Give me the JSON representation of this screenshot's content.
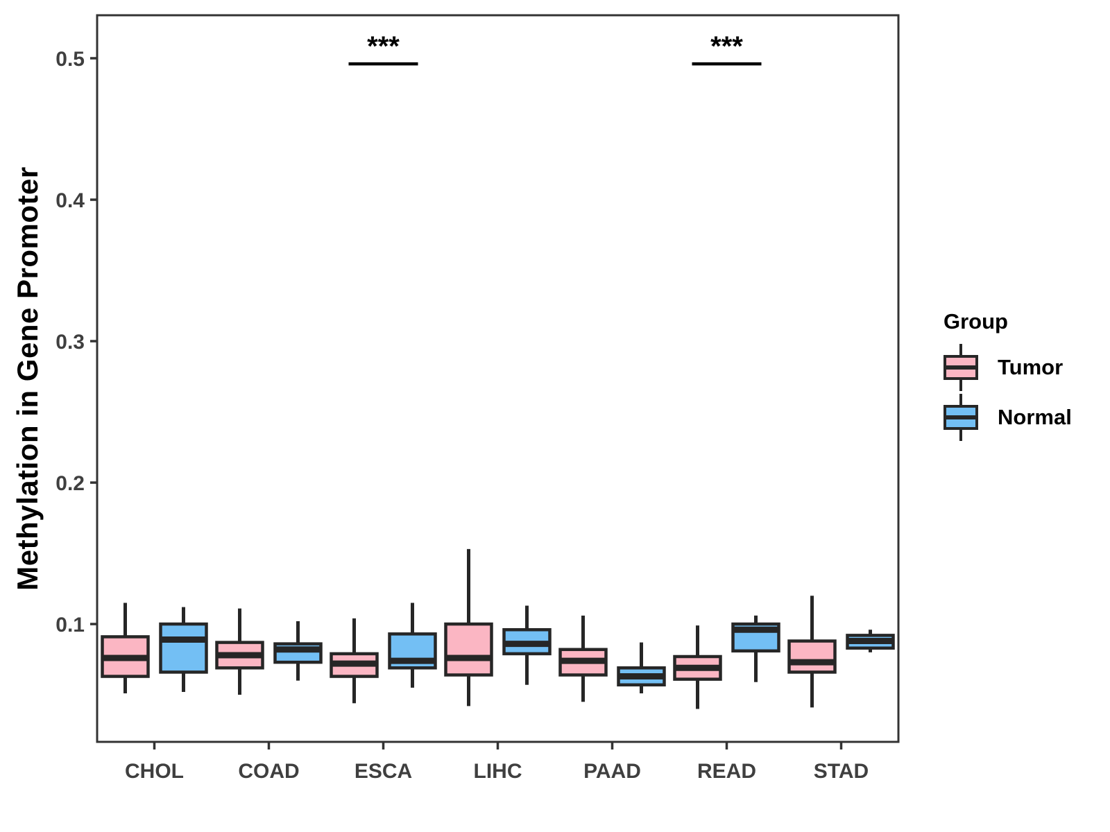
{
  "chart_data": {
    "type": "boxplot",
    "title": "",
    "xlabel": "",
    "ylabel": "Methylation in Gene Promoter",
    "categories": [
      "CHOL",
      "COAD",
      "ESCA",
      "LIHC",
      "PAAD",
      "READ",
      "STAD"
    ],
    "yticks": [
      {
        "value": 0.1,
        "label": "0.1"
      },
      {
        "value": 0.2,
        "label": "0.2"
      },
      {
        "value": 0.3,
        "label": "0.3"
      },
      {
        "value": 0.4,
        "label": "0.4"
      },
      {
        "value": 0.5,
        "label": "0.5"
      }
    ],
    "ylim": [
      0.0167,
      0.5304
    ],
    "grid": false,
    "series": [
      {
        "name": "Tumor",
        "color": "#FBB6C3",
        "boxes": [
          {
            "category": "CHOL",
            "min": 0.051,
            "q1": 0.063,
            "median": 0.076,
            "q3": 0.091,
            "max": 0.115
          },
          {
            "category": "COAD",
            "min": 0.05,
            "q1": 0.069,
            "median": 0.078,
            "q3": 0.087,
            "max": 0.111
          },
          {
            "category": "ESCA",
            "min": 0.044,
            "q1": 0.063,
            "median": 0.072,
            "q3": 0.079,
            "max": 0.104
          },
          {
            "category": "LIHC",
            "min": 0.042,
            "q1": 0.064,
            "median": 0.076,
            "q3": 0.1,
            "max": 0.153
          },
          {
            "category": "PAAD",
            "min": 0.045,
            "q1": 0.064,
            "median": 0.074,
            "q3": 0.082,
            "max": 0.106
          },
          {
            "category": "READ",
            "min": 0.04,
            "q1": 0.061,
            "median": 0.069,
            "q3": 0.077,
            "max": 0.099
          },
          {
            "category": "STAD",
            "min": 0.041,
            "q1": 0.066,
            "median": 0.073,
            "q3": 0.088,
            "max": 0.12
          }
        ]
      },
      {
        "name": "Normal",
        "color": "#73BFF4",
        "boxes": [
          {
            "category": "CHOL",
            "min": 0.052,
            "q1": 0.066,
            "median": 0.089,
            "q3": 0.1,
            "max": 0.112
          },
          {
            "category": "COAD",
            "min": 0.06,
            "q1": 0.073,
            "median": 0.082,
            "q3": 0.086,
            "max": 0.102
          },
          {
            "category": "ESCA",
            "min": 0.055,
            "q1": 0.069,
            "median": 0.074,
            "q3": 0.093,
            "max": 0.115
          },
          {
            "category": "LIHC",
            "min": 0.057,
            "q1": 0.079,
            "median": 0.086,
            "q3": 0.096,
            "max": 0.113
          },
          {
            "category": "PAAD",
            "min": 0.051,
            "q1": 0.057,
            "median": 0.063,
            "q3": 0.069,
            "max": 0.087
          },
          {
            "category": "READ",
            "min": 0.059,
            "q1": 0.081,
            "median": 0.096,
            "q3": 0.1,
            "max": 0.106
          },
          {
            "category": "STAD",
            "min": 0.08,
            "q1": 0.083,
            "median": 0.088,
            "q3": 0.092,
            "max": 0.096
          }
        ]
      }
    ],
    "annotations": [
      {
        "category": "ESCA",
        "label": "***",
        "bar_y": 0.496
      },
      {
        "category": "READ",
        "label": "***",
        "bar_y": 0.496
      }
    ],
    "legend": {
      "title": "Group",
      "position": "right",
      "entries": [
        {
          "label": "Tumor",
          "color": "#FBB6C3"
        },
        {
          "label": "Normal",
          "color": "#73BFF4"
        }
      ]
    },
    "colors": {
      "box_stroke": "#262626",
      "axis": "#333333",
      "tick_label": "#3f3f3f",
      "annotation": "#000000",
      "background": "#ffffff"
    }
  }
}
